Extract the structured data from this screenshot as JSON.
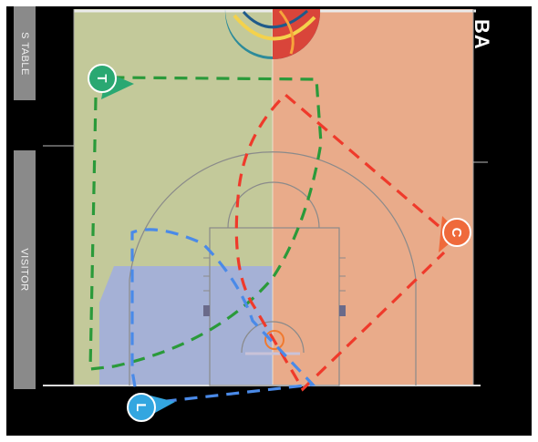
{
  "sidebar": {
    "scorers_table_label": "S TABLE",
    "visitor_label": "VISITOR"
  },
  "brand": {
    "logo_text": "BA"
  },
  "court": {
    "left_zone_color": "#c3c99a",
    "right_zone_color": "#e9ab8a",
    "paint_zone_color": "#a3b0d9",
    "line_color": "#888888"
  },
  "players": [
    {
      "id": "player-t",
      "label": "T",
      "color": "#2aa872",
      "route_color": "#2a9a3a"
    },
    {
      "id": "player-c",
      "label": "C",
      "color": "#ef6a3b",
      "route_color": "#ef3a2b"
    },
    {
      "id": "player-l",
      "label": "L",
      "color": "#33a6e0",
      "route_color": "#4a8ae8"
    }
  ]
}
